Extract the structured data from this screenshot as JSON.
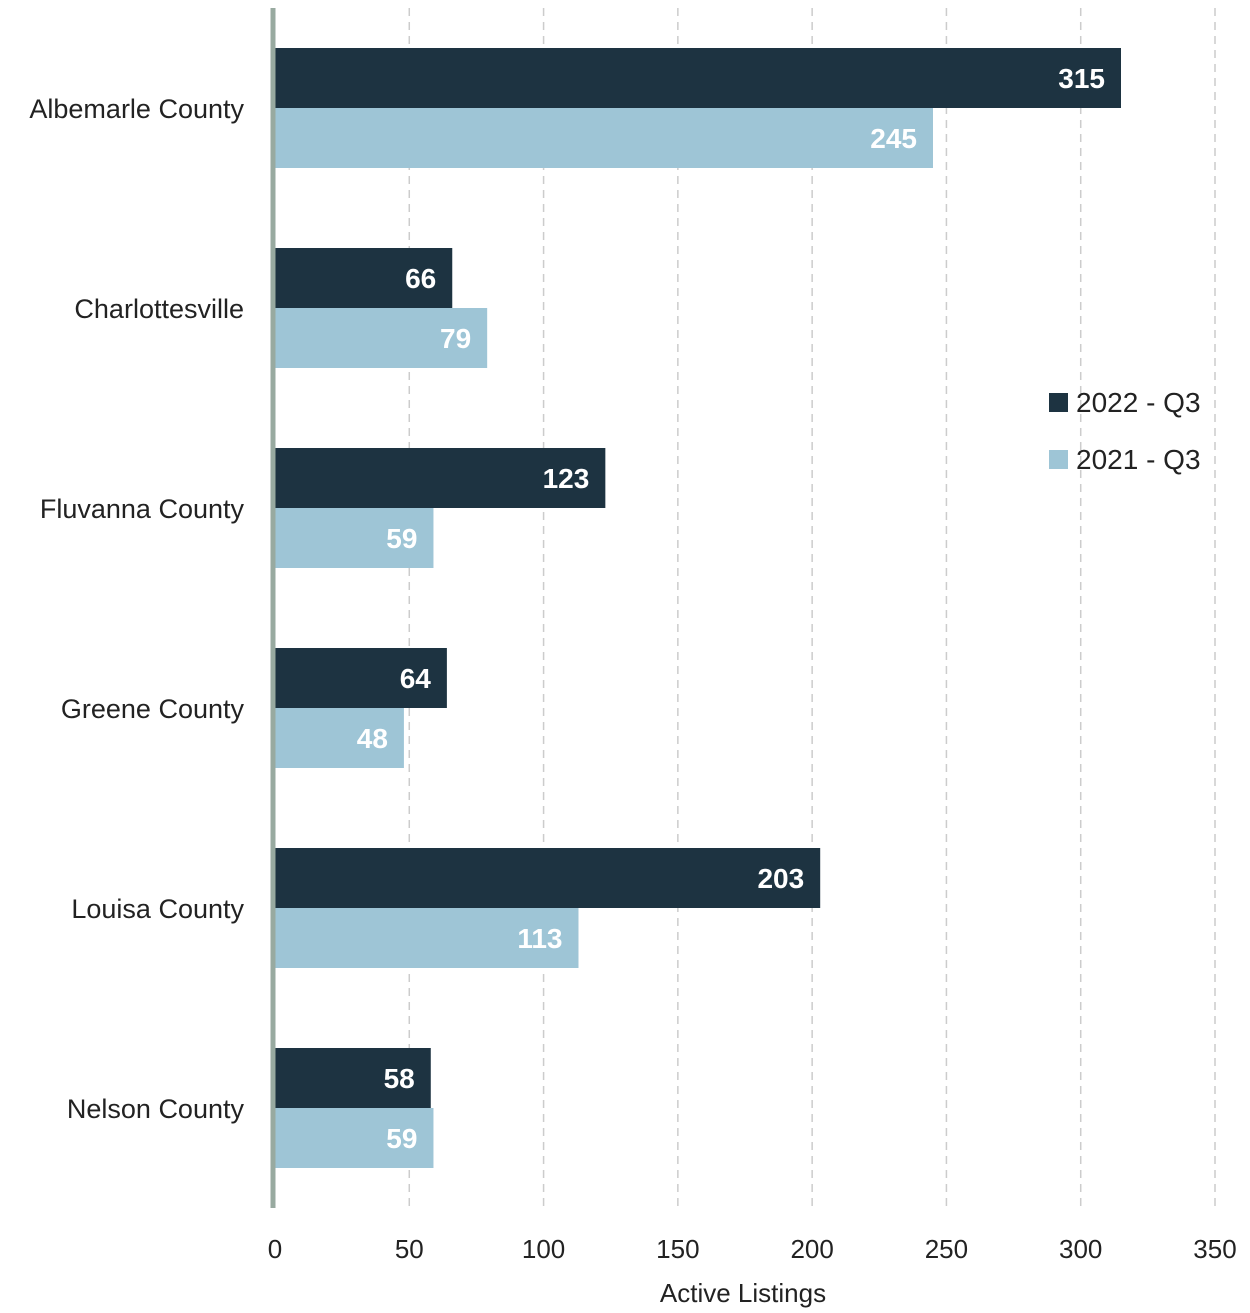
{
  "chart_data": {
    "type": "bar",
    "orientation": "horizontal",
    "categories": [
      "Albemarle County",
      "Charlottesville",
      "Fluvanna County",
      "Greene County",
      "Louisa County",
      "Nelson County"
    ],
    "series": [
      {
        "name": "2022 - Q3",
        "color": "#1d3341",
        "values": [
          315,
          66,
          123,
          64,
          203,
          58
        ]
      },
      {
        "name": "2021 - Q3",
        "color": "#9ec5d6",
        "values": [
          245,
          79,
          59,
          48,
          113,
          59
        ]
      }
    ],
    "xlabel": "Active Listings",
    "ylabel": "",
    "xlim": [
      0,
      350
    ],
    "xticks": [
      0,
      50,
      100,
      150,
      200,
      250,
      300,
      350
    ],
    "grid": "vertical dashed",
    "legend_position": "right",
    "data_labels": true
  }
}
